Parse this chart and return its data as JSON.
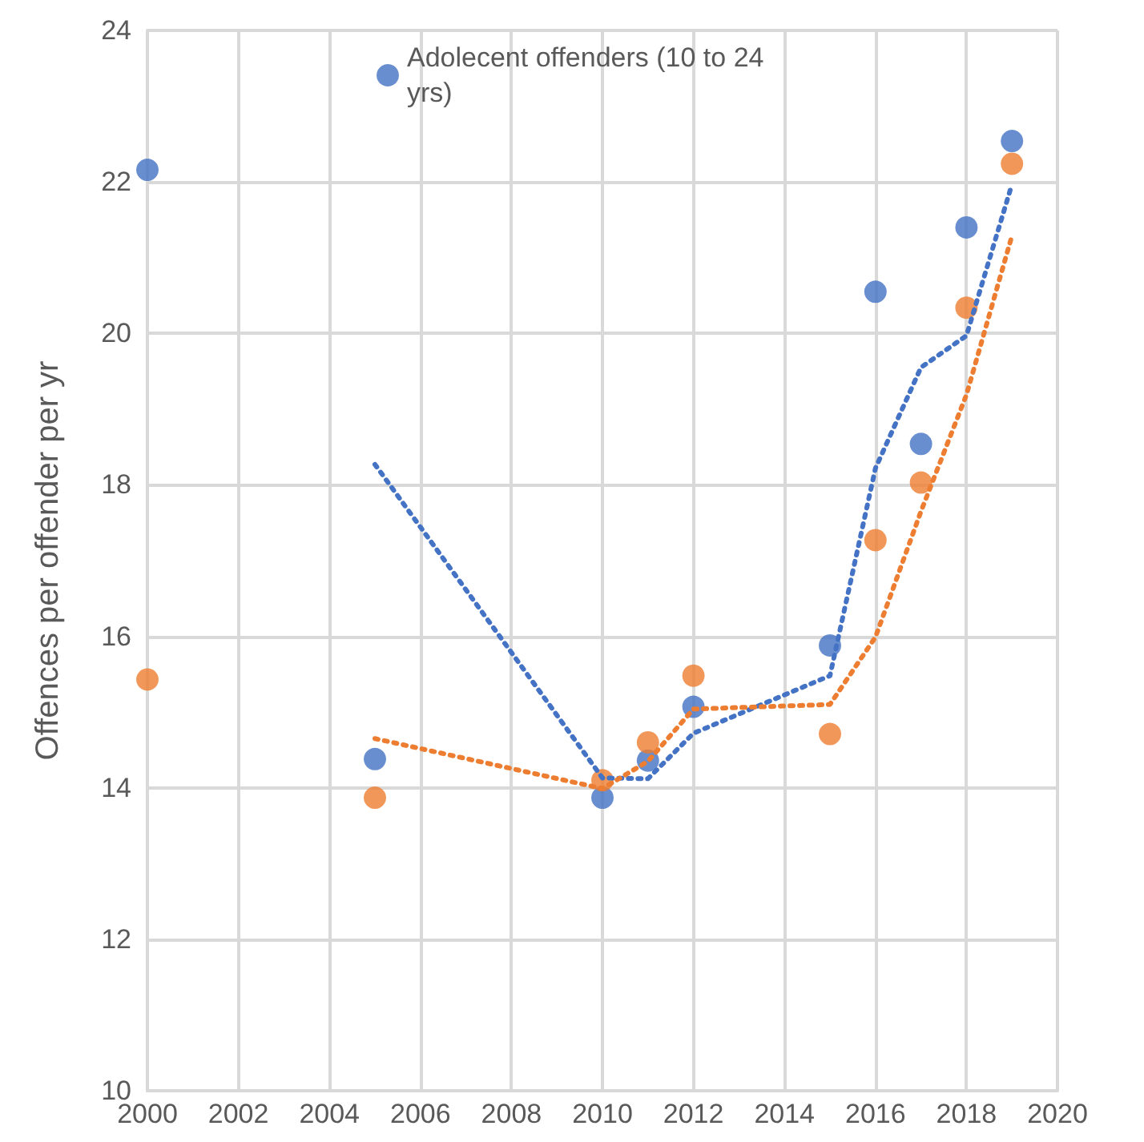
{
  "chart_data": {
    "type": "scatter",
    "ylabel": "Offences per offender per yr",
    "x": [
      2000,
      2005,
      2010,
      2011,
      2012,
      2015,
      2016,
      2017,
      2018,
      2019
    ],
    "series": [
      {
        "name": "Adolecent offenders (10 to 24 yrs)",
        "color": "#4472c4",
        "values": [
          22.16,
          14.38,
          13.87,
          14.36,
          15.07,
          15.88,
          20.55,
          18.54,
          21.4,
          22.54
        ]
      },
      {
        "color": "#ed7d31",
        "values": [
          15.43,
          13.87,
          14.1,
          14.6,
          15.48,
          14.71,
          17.27,
          18.03,
          20.34,
          22.24
        ]
      },
      {
        "type": "line",
        "color": "#4472c4",
        "line_style": "dotted",
        "marker": "none",
        "x": [
          2005,
          2010,
          2011,
          2012,
          2015,
          2016,
          2017,
          2018,
          2019
        ],
        "values": [
          18.27,
          14.13,
          14.12,
          14.72,
          15.48,
          18.22,
          19.55,
          19.97,
          21.97
        ]
      },
      {
        "type": "line",
        "color": "#ed7d31",
        "line_style": "dotted",
        "marker": "none",
        "x": [
          2005,
          2010,
          2011,
          2012,
          2015,
          2016,
          2017,
          2018,
          2019
        ],
        "values": [
          14.65,
          13.99,
          14.35,
          15.04,
          15.1,
          15.99,
          17.65,
          19.19,
          21.29
        ]
      }
    ],
    "marker": "circle",
    "xlim": [
      2000,
      2020
    ],
    "xticks": [
      2000,
      2002,
      2004,
      2006,
      2008,
      2010,
      2012,
      2014,
      2016,
      2018,
      2020
    ],
    "ylim": [
      10,
      24
    ],
    "yticks": [
      10,
      12,
      14,
      16,
      18,
      20,
      22,
      24
    ],
    "grid": true,
    "legend": "top"
  }
}
